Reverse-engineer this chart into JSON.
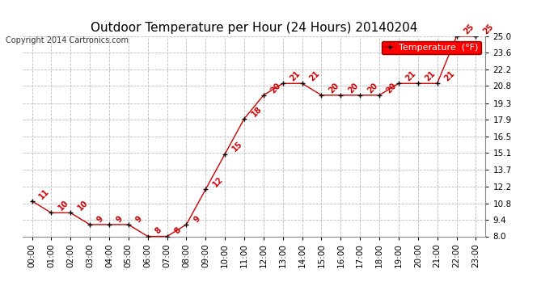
{
  "title": "Outdoor Temperature per Hour (24 Hours) 20140204",
  "copyright": "Copyright 2014 Cartronics.com",
  "legend_label": "Temperature  (°F)",
  "hours": [
    "00:00",
    "01:00",
    "02:00",
    "03:00",
    "04:00",
    "05:00",
    "06:00",
    "07:00",
    "08:00",
    "09:00",
    "10:00",
    "11:00",
    "12:00",
    "13:00",
    "14:00",
    "15:00",
    "16:00",
    "17:00",
    "18:00",
    "19:00",
    "20:00",
    "21:00",
    "22:00",
    "23:00"
  ],
  "temps": [
    11,
    10,
    10,
    9,
    9,
    9,
    8,
    8,
    9,
    12,
    15,
    18,
    20,
    21,
    21,
    20,
    20,
    20,
    20,
    21,
    21,
    21,
    25,
    25
  ],
  "line_color": "#cc0000",
  "marker_color": "#000000",
  "label_color": "#cc0000",
  "bg_color": "#ffffff",
  "grid_color": "#bbbbbb",
  "ylim_min": 8.0,
  "ylim_max": 25.0,
  "yticks": [
    8.0,
    9.4,
    10.8,
    12.2,
    13.7,
    15.1,
    16.5,
    17.9,
    19.3,
    20.8,
    22.2,
    23.6,
    25.0
  ],
  "title_fontsize": 11,
  "label_fontsize": 7,
  "copyright_fontsize": 7,
  "legend_fontsize": 8,
  "tick_fontsize": 7.5
}
